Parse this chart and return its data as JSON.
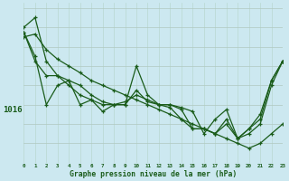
{
  "xlabel": "Graphe pression niveau de la mer (hPa)",
  "bg_color": "#cce8f0",
  "grid_v_color": "#b8d8d0",
  "grid_h_color": "#b0c8c0",
  "line_color": "#1a5c1a",
  "xlim": [
    0,
    23
  ],
  "ylim": [
    1010.5,
    1027.0
  ],
  "lines": [
    [
      1024.5,
      1025.5,
      1021.0,
      1019.5,
      1019.0,
      1018.5,
      1017.5,
      1016.8,
      1016.5,
      1016.5,
      1020.5,
      1017.5,
      1016.5,
      1016.5,
      1016.0,
      1014.0,
      1014.0,
      1013.5,
      1014.5,
      1013.0,
      1014.0,
      1015.5,
      1019.0,
      1021.0
    ],
    [
      1024.0,
      1021.5,
      1016.5,
      1018.5,
      1019.0,
      1016.5,
      1017.0,
      1015.8,
      1016.5,
      1016.8,
      1017.5,
      1017.0,
      1016.5,
      1016.2,
      1015.0,
      1014.0,
      1014.0,
      1013.5,
      1015.0,
      1013.0,
      1014.0,
      1015.0,
      1019.0,
      1021.0
    ],
    [
      1024.0,
      1021.0,
      1019.5,
      1019.5,
      1018.5,
      1017.5,
      1017.0,
      1016.5,
      1016.5,
      1016.5,
      1018.0,
      1016.8,
      1016.5,
      1016.5,
      1016.2,
      1015.8,
      1013.5,
      1015.0,
      1016.0,
      1013.0,
      1013.5,
      1014.5,
      1018.5,
      1021.0
    ],
    [
      1023.5,
      1023.8,
      1022.2,
      1021.2,
      1020.5,
      1019.8,
      1019.0,
      1018.5,
      1018.0,
      1017.5,
      1017.0,
      1016.5,
      1016.0,
      1015.5,
      1015.0,
      1014.5,
      1014.0,
      1013.5,
      1013.0,
      1012.5,
      1012.0,
      1012.5,
      1013.5,
      1014.5
    ]
  ],
  "x_ticks": [
    0,
    1,
    2,
    3,
    4,
    5,
    6,
    7,
    8,
    9,
    10,
    11,
    12,
    13,
    14,
    15,
    16,
    17,
    18,
    19,
    20,
    21,
    22,
    23
  ],
  "ytick_label": "1016",
  "ytick_value": 1016
}
